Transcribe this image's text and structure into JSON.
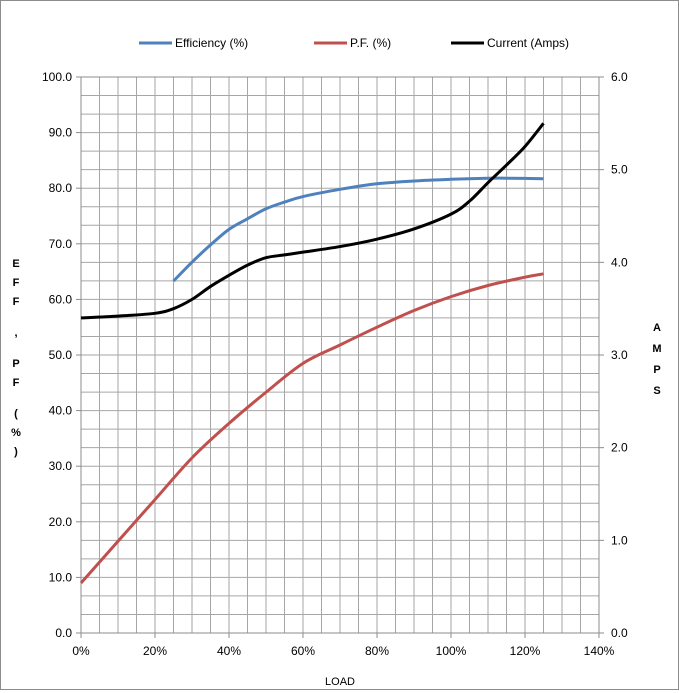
{
  "chart_data": {
    "type": "line",
    "title": "",
    "xlabel": "LOAD",
    "ylabel": "EFF , PF (%)",
    "y2label": "AMPS",
    "xlim": [
      0,
      140
    ],
    "ylim": [
      0,
      100
    ],
    "y2lim": [
      0,
      6
    ],
    "x_ticks": [
      "0%",
      "20%",
      "40%",
      "60%",
      "80%",
      "100%",
      "120%",
      "140%"
    ],
    "y_ticks": [
      "0.0",
      "10.0",
      "20.0",
      "30.0",
      "40.0",
      "50.0",
      "60.0",
      "70.0",
      "80.0",
      "90.0",
      "100.0"
    ],
    "y2_ticks": [
      "0.0",
      "1.0",
      "2.0",
      "3.0",
      "4.0",
      "5.0",
      "6.0"
    ],
    "grid": true,
    "legend_position": "top",
    "series": [
      {
        "name": "Efficiency (%)",
        "axis": "left",
        "color": "#4f81bd",
        "x": [
          25,
          30,
          35,
          40,
          45,
          50,
          55,
          60,
          70,
          80,
          90,
          100,
          110,
          115,
          125
        ],
        "y": [
          63.3,
          66.7,
          69.8,
          72.6,
          74.5,
          76.3,
          77.5,
          78.5,
          79.8,
          80.8,
          81.3,
          81.6,
          81.8,
          81.8,
          81.7
        ]
      },
      {
        "name": "P.F. (%)",
        "axis": "left",
        "color": "#c0504d",
        "x": [
          0,
          10,
          20,
          30,
          40,
          50,
          60,
          70,
          80,
          90,
          100,
          110,
          120,
          125
        ],
        "y": [
          9.0,
          16.5,
          24.0,
          31.5,
          37.7,
          43.3,
          48.5,
          51.8,
          55.0,
          58.0,
          60.5,
          62.5,
          64.0,
          64.6
        ]
      },
      {
        "name": "Current (Amps)",
        "axis": "right",
        "color": "#000000",
        "x": [
          0,
          10,
          20,
          25,
          30,
          35,
          40,
          45,
          50,
          55,
          60,
          70,
          80,
          90,
          100,
          105,
          110,
          115,
          120,
          125
        ],
        "y": [
          3.4,
          3.42,
          3.45,
          3.5,
          3.6,
          3.74,
          3.86,
          3.97,
          4.05,
          4.08,
          4.11,
          4.17,
          4.25,
          4.36,
          4.52,
          4.66,
          4.86,
          5.05,
          5.25,
          5.5
        ]
      }
    ]
  }
}
